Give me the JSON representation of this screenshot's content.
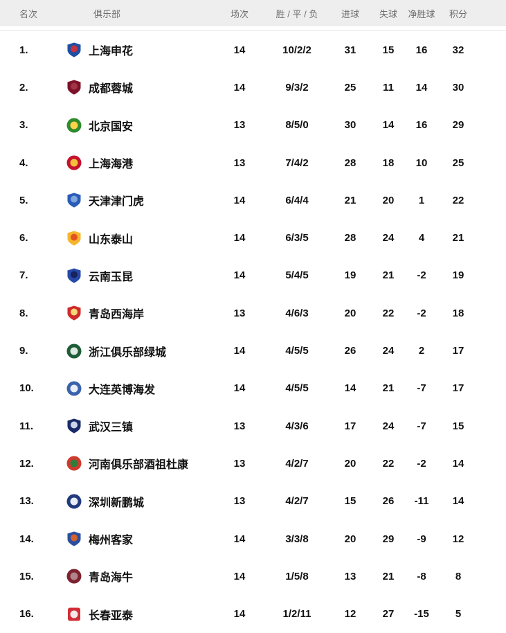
{
  "colors": {
    "header_bg": "#eeeeee",
    "header_text": "#6e6e6e",
    "row_text": "#111111",
    "divider": "#e5e5e5"
  },
  "table": {
    "headers": {
      "rank": "名次",
      "club": "俱乐部",
      "matches": "场次",
      "wdl": "胜 / 平 / 负",
      "goals_for": "进球",
      "goals_against": "失球",
      "goal_diff": "净胜球",
      "points": "积分"
    },
    "rows": [
      {
        "rank": "1.",
        "club": "上海申花",
        "matches": "14",
        "wdl": "10/2/2",
        "goals_for": "31",
        "goals_against": "15",
        "goal_diff": "16",
        "points": "32",
        "logo": {
          "shape": "shield",
          "primary": "#1e4fa3",
          "secondary": "#c8313e"
        }
      },
      {
        "rank": "2.",
        "club": "成都蓉城",
        "matches": "14",
        "wdl": "9/3/2",
        "goals_for": "25",
        "goals_against": "11",
        "goal_diff": "14",
        "points": "30",
        "logo": {
          "shape": "shield",
          "primary": "#7d1128",
          "secondary": "#a33347"
        }
      },
      {
        "rank": "3.",
        "club": "北京国安",
        "matches": "13",
        "wdl": "8/5/0",
        "goals_for": "30",
        "goals_against": "14",
        "goal_diff": "16",
        "points": "29",
        "logo": {
          "shape": "circle",
          "primary": "#2e8b2e",
          "secondary": "#ffd24a"
        }
      },
      {
        "rank": "4.",
        "club": "上海海港",
        "matches": "13",
        "wdl": "7/4/2",
        "goals_for": "28",
        "goals_against": "18",
        "goal_diff": "10",
        "points": "25",
        "logo": {
          "shape": "circle",
          "primary": "#c4122f",
          "secondary": "#f3c13a"
        }
      },
      {
        "rank": "5.",
        "club": "天津津门虎",
        "matches": "14",
        "wdl": "6/4/4",
        "goals_for": "21",
        "goals_against": "20",
        "goal_diff": "1",
        "points": "22",
        "logo": {
          "shape": "shield",
          "primary": "#2a5bb7",
          "secondary": "#7ea6e0"
        }
      },
      {
        "rank": "6.",
        "club": "山东泰山",
        "matches": "14",
        "wdl": "6/3/5",
        "goals_for": "28",
        "goals_against": "24",
        "goal_diff": "4",
        "points": "21",
        "logo": {
          "shape": "shield",
          "primary": "#f5b52e",
          "secondary": "#e2541f"
        }
      },
      {
        "rank": "7.",
        "club": "云南玉昆",
        "matches": "14",
        "wdl": "5/4/5",
        "goals_for": "19",
        "goals_against": "21",
        "goal_diff": "-2",
        "points": "19",
        "logo": {
          "shape": "shield",
          "primary": "#2649a8",
          "secondary": "#16235e"
        }
      },
      {
        "rank": "8.",
        "club": "青岛西海岸",
        "matches": "13",
        "wdl": "4/6/3",
        "goals_for": "20",
        "goals_against": "22",
        "goal_diff": "-2",
        "points": "18",
        "logo": {
          "shape": "shield",
          "primary": "#cf2a2a",
          "secondary": "#f6d879"
        }
      },
      {
        "rank": "9.",
        "club": "浙江俱乐部绿城",
        "matches": "14",
        "wdl": "4/5/5",
        "goals_for": "26",
        "goals_against": "24",
        "goal_diff": "2",
        "points": "17",
        "logo": {
          "shape": "circle",
          "primary": "#1f5c38",
          "secondary": "#dfe9df"
        }
      },
      {
        "rank": "10.",
        "club": "大连英博海发",
        "matches": "14",
        "wdl": "4/5/5",
        "goals_for": "14",
        "goals_against": "21",
        "goal_diff": "-7",
        "points": "17",
        "logo": {
          "shape": "circle",
          "primary": "#3a63ad",
          "secondary": "#e9eef8"
        }
      },
      {
        "rank": "11.",
        "club": "武汉三镇",
        "matches": "13",
        "wdl": "4/3/6",
        "goals_for": "17",
        "goals_against": "24",
        "goal_diff": "-7",
        "points": "15",
        "logo": {
          "shape": "shield",
          "primary": "#1a2c66",
          "secondary": "#cdd6ee"
        }
      },
      {
        "rank": "12.",
        "club": "河南俱乐部酒祖杜康",
        "matches": "13",
        "wdl": "4/2/7",
        "goals_for": "20",
        "goals_against": "22",
        "goal_diff": "-2",
        "points": "14",
        "logo": {
          "shape": "circle",
          "primary": "#cf3a2e",
          "secondary": "#2f7d3a"
        }
      },
      {
        "rank": "13.",
        "club": "深圳新鹏城",
        "matches": "13",
        "wdl": "4/2/7",
        "goals_for": "15",
        "goals_against": "26",
        "goal_diff": "-11",
        "points": "14",
        "logo": {
          "shape": "circle",
          "primary": "#223a7d",
          "secondary": "#e8edf7"
        }
      },
      {
        "rank": "14.",
        "club": "梅州客家",
        "matches": "14",
        "wdl": "3/3/8",
        "goals_for": "20",
        "goals_against": "29",
        "goal_diff": "-9",
        "points": "12",
        "logo": {
          "shape": "shield",
          "primary": "#2a4fa0",
          "secondary": "#d4622a"
        }
      },
      {
        "rank": "15.",
        "club": "青岛海牛",
        "matches": "14",
        "wdl": "1/5/8",
        "goals_for": "13",
        "goals_against": "21",
        "goal_diff": "-8",
        "points": "8",
        "logo": {
          "shape": "circle",
          "primary": "#7c2230",
          "secondary": "#b0848a"
        }
      },
      {
        "rank": "16.",
        "club": "长春亚泰",
        "matches": "14",
        "wdl": "1/2/11",
        "goals_for": "12",
        "goals_against": "27",
        "goal_diff": "-15",
        "points": "5",
        "logo": {
          "shape": "square",
          "primary": "#d22c35",
          "secondary": "#f3e9e9"
        }
      }
    ]
  }
}
